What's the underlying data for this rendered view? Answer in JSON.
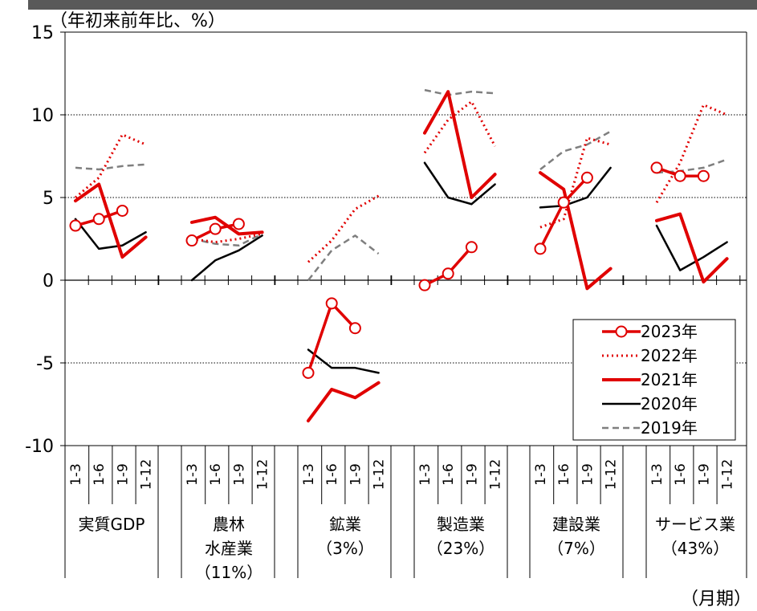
{
  "unit_label": "（年初来前年比、%）",
  "period_label": "（月期）",
  "colors": {
    "red": "#e00000",
    "black": "#000000",
    "gray": "#7f7f7f",
    "bar": "#595959"
  },
  "chart_data": {
    "type": "line",
    "ylim": [
      -10,
      15
    ],
    "yticks": [
      15,
      10,
      5,
      0,
      -5,
      -10
    ],
    "ytick_labels": [
      "15",
      "10",
      "5",
      "0",
      "-5",
      "-10"
    ],
    "grid": "horizontal dotted at 10, 5, -5",
    "x_sub_labels": [
      "1-3",
      "1-6",
      "1-9",
      "1-12"
    ],
    "groups": [
      {
        "label_lines": [
          "実質GDP"
        ]
      },
      {
        "label_lines": [
          "農林",
          "水産業",
          "（11%）"
        ]
      },
      {
        "label_lines": [
          "鉱業",
          "（3%）"
        ]
      },
      {
        "label_lines": [
          "製造業",
          "（23%）"
        ]
      },
      {
        "label_lines": [
          "建設業",
          "（7%）"
        ]
      },
      {
        "label_lines": [
          "サービス業",
          "（43%）"
        ]
      }
    ],
    "legend_position": "center-right",
    "series": [
      {
        "name": "2023年",
        "style": "red-solid-circles",
        "groups": [
          [
            3.3,
            3.7,
            4.2,
            null
          ],
          [
            2.4,
            3.1,
            3.4,
            null
          ],
          [
            -5.6,
            -1.4,
            -2.9,
            null
          ],
          [
            -0.3,
            0.4,
            2.0,
            null
          ],
          [
            1.9,
            4.7,
            6.2,
            null
          ],
          [
            6.8,
            6.3,
            6.3,
            null
          ]
        ]
      },
      {
        "name": "2022年",
        "style": "red-dotted",
        "groups": [
          [
            5.0,
            6.2,
            8.8,
            8.2
          ],
          [
            2.5,
            2.3,
            2.5,
            2.8
          ],
          [
            1.1,
            2.4,
            4.3,
            5.1
          ],
          [
            7.7,
            9.7,
            10.8,
            8.1
          ],
          [
            3.2,
            3.7,
            8.6,
            8.2
          ],
          [
            4.7,
            7.1,
            10.6,
            10.0
          ]
        ]
      },
      {
        "name": "2021年",
        "style": "red-solid",
        "groups": [
          [
            4.8,
            5.8,
            1.4,
            2.6
          ],
          [
            3.5,
            3.8,
            2.8,
            2.9
          ],
          [
            -8.5,
            -6.6,
            -7.1,
            -6.2
          ],
          [
            8.9,
            11.4,
            5.0,
            6.4
          ],
          [
            6.5,
            5.5,
            -0.5,
            0.7
          ],
          [
            3.6,
            4.0,
            -0.1,
            1.3
          ]
        ]
      },
      {
        "name": "2020年",
        "style": "black-solid",
        "groups": [
          [
            3.7,
            1.9,
            2.1,
            2.9
          ],
          [
            0.0,
            1.2,
            1.8,
            2.7
          ],
          [
            -4.2,
            -5.3,
            -5.3,
            -5.6
          ],
          [
            7.1,
            5.0,
            4.6,
            5.8
          ],
          [
            4.4,
            4.5,
            5.0,
            6.8
          ],
          [
            3.3,
            0.6,
            1.4,
            2.3
          ]
        ]
      },
      {
        "name": "2019年",
        "style": "gray-dashed",
        "groups": [
          [
            6.8,
            6.7,
            6.9,
            7.0
          ],
          [
            2.5,
            2.2,
            2.1,
            2.8
          ],
          [
            0.0,
            1.8,
            2.7,
            1.6
          ],
          [
            11.5,
            11.2,
            11.4,
            11.3
          ],
          [
            6.7,
            7.8,
            8.2,
            9.0
          ],
          [
            6.5,
            6.6,
            6.8,
            7.3
          ]
        ]
      }
    ]
  }
}
